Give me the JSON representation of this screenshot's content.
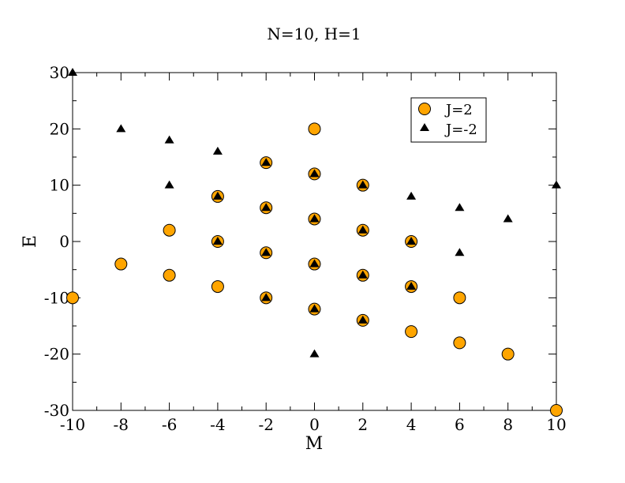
{
  "chart_data": {
    "type": "scatter",
    "title": "N=10, H=1",
    "xlabel": "M",
    "ylabel": "E",
    "xlim": [
      -10,
      10
    ],
    "ylim": [
      -30,
      30
    ],
    "xticks": [
      -10,
      -8,
      -6,
      -4,
      -2,
      0,
      2,
      4,
      6,
      8,
      10
    ],
    "yticks": [
      -30,
      -20,
      -10,
      0,
      10,
      20,
      30
    ],
    "grid": false,
    "legend_position": "top-right",
    "series": [
      {
        "name": "J=2",
        "marker": "circle",
        "color": "#ffa500",
        "edge_color": "#000000",
        "points": [
          [
            -10,
            -10
          ],
          [
            -8,
            -4
          ],
          [
            -6,
            2
          ],
          [
            -6,
            -6
          ],
          [
            -4,
            8
          ],
          [
            -4,
            0
          ],
          [
            -4,
            -8
          ],
          [
            -2,
            14
          ],
          [
            -2,
            6
          ],
          [
            -2,
            -2
          ],
          [
            -2,
            -10
          ],
          [
            0,
            20
          ],
          [
            0,
            12
          ],
          [
            0,
            4
          ],
          [
            0,
            -4
          ],
          [
            0,
            -12
          ],
          [
            2,
            10
          ],
          [
            2,
            2
          ],
          [
            2,
            -6
          ],
          [
            2,
            -14
          ],
          [
            4,
            0
          ],
          [
            4,
            -8
          ],
          [
            4,
            -16
          ],
          [
            6,
            -10
          ],
          [
            6,
            -18
          ],
          [
            8,
            -20
          ],
          [
            10,
            -30
          ]
        ]
      },
      {
        "name": "J=-2",
        "marker": "triangle",
        "color": "#000000",
        "points": [
          [
            -10,
            30
          ],
          [
            -8,
            20
          ],
          [
            -6,
            18
          ],
          [
            -6,
            10
          ],
          [
            -4,
            16
          ],
          [
            -4,
            8
          ],
          [
            -4,
            0
          ],
          [
            -2,
            14
          ],
          [
            -2,
            6
          ],
          [
            -2,
            -2
          ],
          [
            -2,
            -10
          ],
          [
            0,
            12
          ],
          [
            0,
            4
          ],
          [
            0,
            -4
          ],
          [
            0,
            -12
          ],
          [
            0,
            -20
          ],
          [
            2,
            10
          ],
          [
            2,
            2
          ],
          [
            2,
            -6
          ],
          [
            2,
            -14
          ],
          [
            4,
            8
          ],
          [
            4,
            0
          ],
          [
            4,
            -8
          ],
          [
            6,
            6
          ],
          [
            6,
            -2
          ],
          [
            8,
            4
          ],
          [
            10,
            10
          ]
        ]
      }
    ]
  }
}
